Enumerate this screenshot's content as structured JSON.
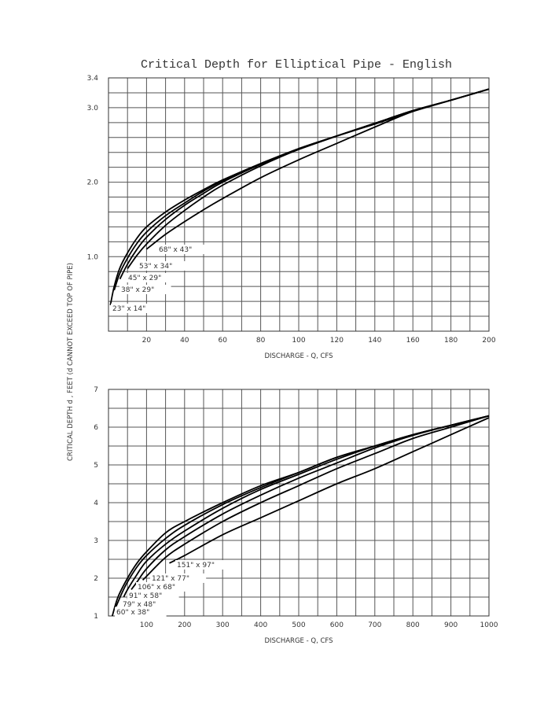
{
  "title": "Critical Depth for Elliptical Pipe - English",
  "y_axis_label": "CRITICAL DEPTH d  , FEET (d  CANNOT EXCEED TOP OF PIPE)",
  "chart_data": [
    {
      "type": "line",
      "title": "Critical Depth for Elliptical Pipe - English",
      "xlabel": "DISCHARGE - Q, CFS",
      "ylabel": "CRITICAL DEPTH d , FEET (d CANNOT EXCEED TOP OF PIPE)",
      "xlim": [
        0,
        200
      ],
      "ylim": [
        0,
        3.4
      ],
      "grid": true,
      "x_ticks": [
        "20",
        "40",
        "60",
        "80",
        "100",
        "120",
        "140",
        "160",
        "180",
        "200"
      ],
      "y_ticks": [
        "1.0",
        "2.0",
        "3.0",
        "3.4"
      ],
      "x_grid_step": 10,
      "y_grid_step": 0.2,
      "series": [
        {
          "name": "23\" x 14\"",
          "x": [
            1,
            3,
            6,
            10,
            15,
            20,
            30,
            40,
            50,
            60,
            80,
            100,
            120,
            140,
            160,
            180,
            200
          ],
          "y": [
            0.35,
            0.6,
            0.85,
            1.05,
            1.25,
            1.4,
            1.6,
            1.76,
            1.9,
            2.03,
            2.25,
            2.45,
            2.62,
            2.78,
            2.95,
            3.1,
            3.25
          ]
        },
        {
          "name": "38\" x 29\"",
          "x": [
            3,
            6,
            10,
            15,
            20,
            30,
            40,
            50,
            60,
            80,
            100,
            120,
            140,
            160,
            180,
            200
          ],
          "y": [
            0.55,
            0.78,
            0.98,
            1.18,
            1.33,
            1.55,
            1.72,
            1.88,
            2.02,
            2.25,
            2.44,
            2.62,
            2.79,
            2.96,
            3.1,
            3.25
          ]
        },
        {
          "name": "45\" x 29\"",
          "x": [
            6,
            10,
            15,
            20,
            30,
            40,
            50,
            60,
            80,
            100,
            120,
            140,
            160,
            180,
            200
          ],
          "y": [
            0.7,
            0.9,
            1.1,
            1.26,
            1.5,
            1.69,
            1.85,
            2.0,
            2.24,
            2.45,
            2.62,
            2.79,
            2.96,
            3.1,
            3.25
          ]
        },
        {
          "name": "53\" x 34\"",
          "x": [
            10,
            15,
            20,
            30,
            40,
            50,
            60,
            80,
            100,
            120,
            140,
            160,
            180,
            200
          ],
          "y": [
            0.84,
            1.02,
            1.17,
            1.42,
            1.62,
            1.8,
            1.96,
            2.22,
            2.44,
            2.62,
            2.79,
            2.96,
            3.1,
            3.25
          ]
        },
        {
          "name": "68\" x 43\"",
          "x": [
            20,
            30,
            40,
            50,
            60,
            80,
            100,
            120,
            140,
            160,
            180,
            200
          ],
          "y": [
            1.1,
            1.3,
            1.47,
            1.63,
            1.78,
            2.06,
            2.3,
            2.52,
            2.74,
            2.95,
            3.1,
            3.25
          ]
        }
      ]
    },
    {
      "type": "line",
      "xlabel": "DISCHARGE - Q, CFS",
      "ylabel": "CRITICAL DEPTH d , FEET (d CANNOT EXCEED TOP OF PIPE)",
      "xlim": [
        0,
        1000
      ],
      "ylim": [
        1,
        7
      ],
      "grid": true,
      "x_ticks": [
        "100",
        "200",
        "300",
        "400",
        "500",
        "600",
        "700",
        "800",
        "900",
        "1000"
      ],
      "y_ticks": [
        "1",
        "2",
        "3",
        "4",
        "5",
        "6",
        "7"
      ],
      "x_grid_step": 50,
      "y_grid_step": 0.5,
      "series": [
        {
          "name": "60\" x 38\"",
          "x": [
            10,
            25,
            50,
            75,
            100,
            150,
            200,
            300,
            400,
            500,
            600,
            700,
            800,
            900,
            1000
          ],
          "y": [
            1.0,
            1.5,
            2.0,
            2.4,
            2.7,
            3.2,
            3.5,
            4.0,
            4.45,
            4.8,
            5.2,
            5.5,
            5.8,
            6.05,
            6.3
          ]
        },
        {
          "name": "79\" x 48\"",
          "x": [
            20,
            35,
            50,
            75,
            100,
            150,
            200,
            300,
            400,
            500,
            600,
            700,
            800,
            900,
            1000
          ],
          "y": [
            1.25,
            1.6,
            1.9,
            2.3,
            2.6,
            3.05,
            3.4,
            3.95,
            4.4,
            4.8,
            5.2,
            5.5,
            5.8,
            6.05,
            6.3
          ]
        },
        {
          "name": "91\" x 58\"",
          "x": [
            40,
            50,
            75,
            100,
            150,
            200,
            300,
            400,
            500,
            600,
            700,
            800,
            900,
            1000
          ],
          "y": [
            1.5,
            1.7,
            2.1,
            2.45,
            2.9,
            3.25,
            3.85,
            4.35,
            4.75,
            5.15,
            5.5,
            5.8,
            6.05,
            6.3
          ]
        },
        {
          "name": "106\" x 68\"",
          "x": [
            60,
            75,
            100,
            150,
            200,
            300,
            400,
            500,
            600,
            700,
            800,
            900,
            1000
          ],
          "y": [
            1.7,
            1.9,
            2.25,
            2.75,
            3.1,
            3.7,
            4.2,
            4.65,
            5.05,
            5.45,
            5.78,
            6.05,
            6.3
          ]
        },
        {
          "name": "121\" x 77\"",
          "x": [
            90,
            100,
            150,
            200,
            300,
            400,
            500,
            600,
            700,
            800,
            900,
            1000
          ],
          "y": [
            1.95,
            2.05,
            2.55,
            2.9,
            3.5,
            4.0,
            4.45,
            4.9,
            5.3,
            5.7,
            6.0,
            6.3
          ]
        },
        {
          "name": "151\" x 97\"",
          "x": [
            160,
            200,
            300,
            400,
            500,
            600,
            700,
            800,
            900,
            1000
          ],
          "y": [
            2.4,
            2.6,
            3.15,
            3.6,
            4.05,
            4.5,
            4.9,
            5.35,
            5.8,
            6.25
          ]
        }
      ]
    }
  ]
}
